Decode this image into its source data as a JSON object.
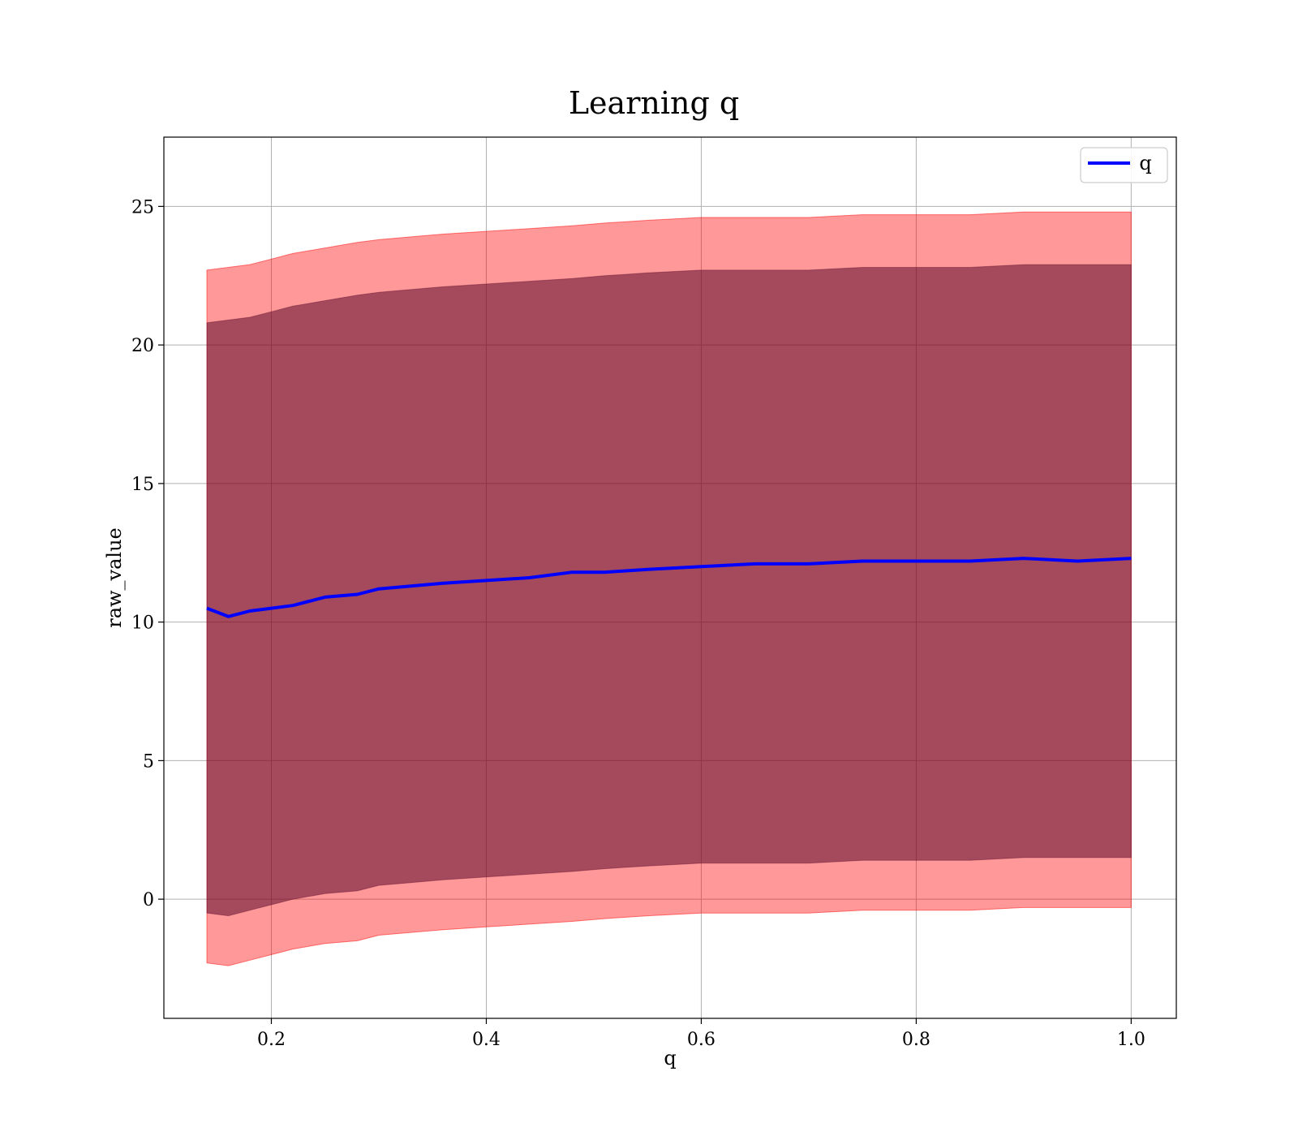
{
  "chart_data": {
    "type": "line",
    "title": "Learning q",
    "xlabel": "q",
    "ylabel": "raw_value",
    "xlim": [
      0.1,
      1.042
    ],
    "ylim": [
      -4.3,
      27.5
    ],
    "xticks": [
      0.2,
      0.4,
      0.6,
      0.8,
      1.0
    ],
    "xtick_labels": [
      "0.2",
      "0.4",
      "0.6",
      "0.8",
      "1.0"
    ],
    "yticks": [
      0,
      5,
      10,
      15,
      20,
      25
    ],
    "ytick_labels": [
      "0",
      "5",
      "10",
      "15",
      "20",
      "25"
    ],
    "grid": true,
    "legend": {
      "position": "top-right",
      "entries": [
        {
          "label": "q",
          "color": "#0000ff"
        }
      ]
    },
    "colors": {
      "line": "#0000ff",
      "band": "#ff0000",
      "inner_band": "#5a0a2a",
      "grid": "#b0b0b0"
    },
    "series": [
      {
        "name": "q",
        "x": [
          0.14,
          0.16,
          0.18,
          0.2,
          0.22,
          0.25,
          0.28,
          0.3,
          0.33,
          0.36,
          0.4,
          0.44,
          0.48,
          0.51,
          0.55,
          0.6,
          0.65,
          0.7,
          0.75,
          0.8,
          0.85,
          0.9,
          0.95,
          1.0
        ],
        "y": [
          10.5,
          10.2,
          10.4,
          10.5,
          10.6,
          10.9,
          11.0,
          11.2,
          11.3,
          11.4,
          11.5,
          11.6,
          11.8,
          11.8,
          11.9,
          12.0,
          12.1,
          12.1,
          12.2,
          12.2,
          12.2,
          12.3,
          12.2,
          12.3
        ],
        "band_outer_upper": [
          22.7,
          22.8,
          22.9,
          23.1,
          23.3,
          23.5,
          23.7,
          23.8,
          23.9,
          24.0,
          24.1,
          24.2,
          24.3,
          24.4,
          24.5,
          24.6,
          24.6,
          24.6,
          24.7,
          24.7,
          24.7,
          24.8,
          24.8,
          24.8
        ],
        "band_inner_upper": [
          20.8,
          20.9,
          21.0,
          21.2,
          21.4,
          21.6,
          21.8,
          21.9,
          22.0,
          22.1,
          22.2,
          22.3,
          22.4,
          22.5,
          22.6,
          22.7,
          22.7,
          22.7,
          22.8,
          22.8,
          22.8,
          22.9,
          22.9,
          22.9
        ],
        "band_inner_lower": [
          -0.5,
          -0.6,
          -0.4,
          -0.2,
          0.0,
          0.2,
          0.3,
          0.5,
          0.6,
          0.7,
          0.8,
          0.9,
          1.0,
          1.1,
          1.2,
          1.3,
          1.3,
          1.3,
          1.4,
          1.4,
          1.4,
          1.5,
          1.5,
          1.5
        ],
        "band_outer_lower": [
          -2.3,
          -2.4,
          -2.2,
          -2.0,
          -1.8,
          -1.6,
          -1.5,
          -1.3,
          -1.2,
          -1.1,
          -1.0,
          -0.9,
          -0.8,
          -0.7,
          -0.6,
          -0.5,
          -0.5,
          -0.5,
          -0.4,
          -0.4,
          -0.4,
          -0.3,
          -0.3,
          -0.3
        ]
      }
    ]
  }
}
